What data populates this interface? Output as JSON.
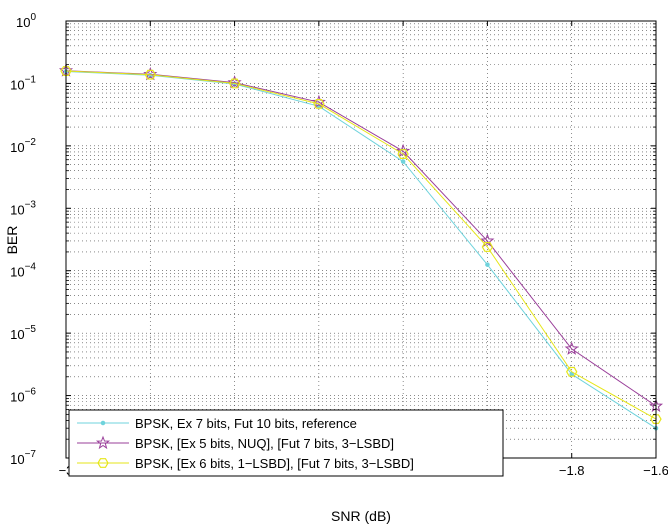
{
  "chart_data": {
    "type": "line",
    "xlabel": "SNR (dB)",
    "ylabel": "BER",
    "xlim": [
      -3,
      -1.6
    ],
    "ylim": [
      1e-07,
      1
    ],
    "yscale": "log",
    "grid": true,
    "legend_position": "bottom-left",
    "x_ticks": [
      -3,
      -2.8,
      -2.6,
      -2.4,
      -2.2,
      -2,
      -1.8,
      -1.6
    ],
    "x_tick_labels": [
      "−3",
      "−2.8",
      "−2.6",
      "−2.4",
      "−2.2",
      "−2",
      "−1.8",
      "−1.6"
    ],
    "y_tick_exponents": [
      0,
      -1,
      -2,
      -3,
      -4,
      -5,
      -6,
      -7
    ],
    "y_tick_labels": [
      {
        "base": "10",
        "exp": "0"
      },
      {
        "base": "10",
        "exp": "−1"
      },
      {
        "base": "10",
        "exp": "−2"
      },
      {
        "base": "10",
        "exp": "−3"
      },
      {
        "base": "10",
        "exp": "−4"
      },
      {
        "base": "10",
        "exp": "−5"
      },
      {
        "base": "10",
        "exp": "−6"
      },
      {
        "base": "10",
        "exp": "−7"
      }
    ],
    "x": [
      -3,
      -2.8,
      -2.6,
      -2.4,
      -2.2,
      -2,
      -1.8,
      -1.6
    ],
    "series": [
      {
        "name": "BPSK, Ex 7 bits, Fut 10 bits, reference",
        "color": "#6fd3dc",
        "marker": "dot",
        "values": [
          0.155,
          0.135,
          0.098,
          0.043,
          0.0056,
          0.000125,
          2.2e-06,
          3e-07
        ]
      },
      {
        "name": "BPSK, [Ex 5 bits, NUQ], [Fut 7 bits, 3−LSBD]",
        "color": "#9a3f9a",
        "marker": "star",
        "values": [
          0.16,
          0.14,
          0.103,
          0.05,
          0.0082,
          0.0003,
          5.6e-06,
          6.8e-07
        ]
      },
      {
        "name": "BPSK, [Ex 6 bits, 1−LSBD], [Fut 7 bits, 3−LSBD]",
        "color": "#e6e619",
        "marker": "hexagon",
        "values": [
          0.158,
          0.138,
          0.1,
          0.047,
          0.0074,
          0.00024,
          2.4e-06,
          4.2e-07
        ]
      }
    ]
  }
}
